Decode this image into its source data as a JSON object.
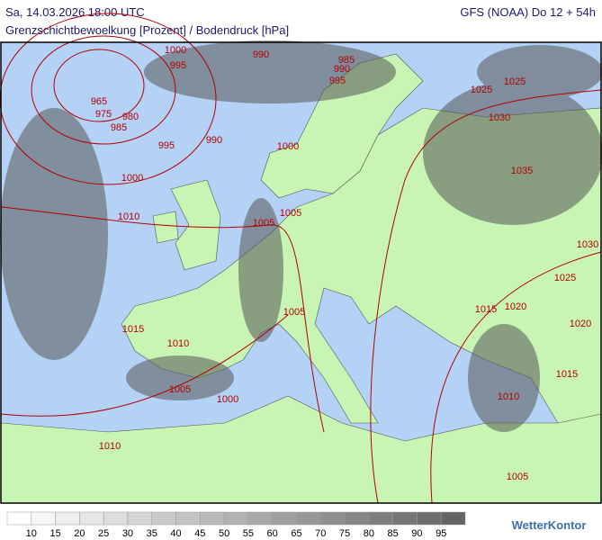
{
  "header": {
    "datetime": "Sa, 14.03.2026 18:00 UTC",
    "model": "GFS (NOAA) Do 12 + 54h",
    "title": "Grenzschichtbewoelkung [Prozent] / Bodendruck [hPa]"
  },
  "isobar_labels": [
    "1000",
    "995",
    "990",
    "985",
    "990",
    "995",
    "965",
    "975",
    "980",
    "985",
    "995",
    "990",
    "1000",
    "1000",
    "1010",
    "1005",
    "1005",
    "1025",
    "1025",
    "1030",
    "1035",
    "1030",
    "1025",
    "1015",
    "1020",
    "1020",
    "1015",
    "1015",
    "1010",
    "1005",
    "1005",
    "1000",
    "1010",
    "1010",
    "1005"
  ],
  "legend": {
    "labels": [
      10,
      15,
      20,
      25,
      30,
      35,
      40,
      45,
      50,
      55,
      60,
      65,
      70,
      75,
      80,
      85,
      90,
      95
    ]
  },
  "logo": "WetterKontor"
}
